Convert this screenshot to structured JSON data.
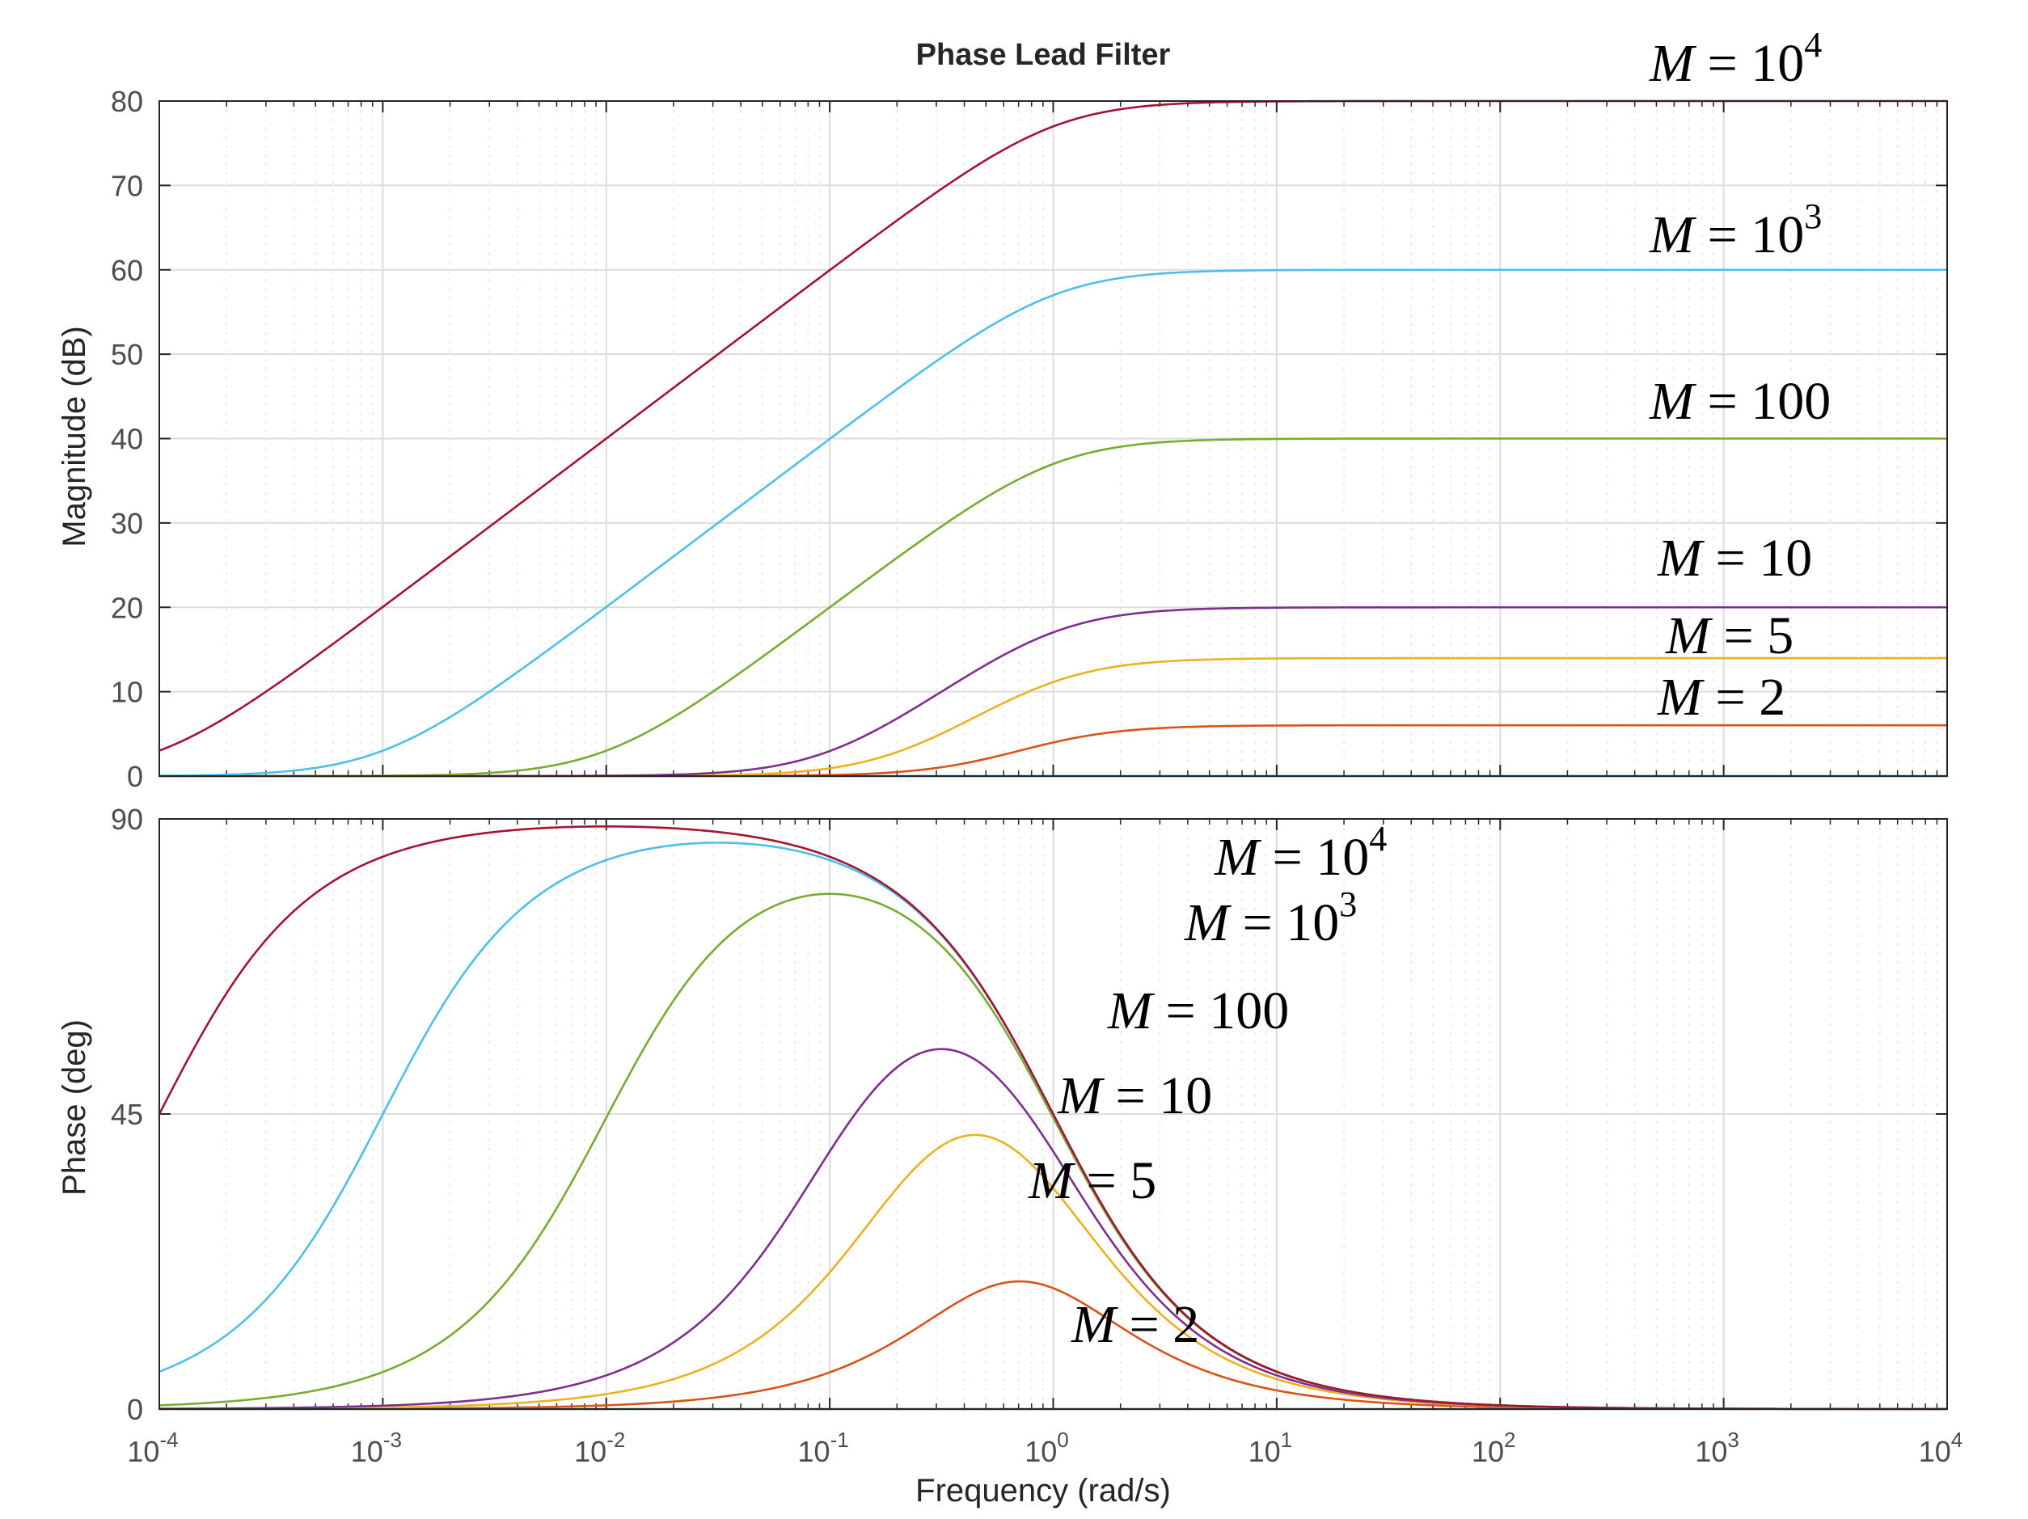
{
  "chart_data": {
    "type": "line",
    "title": "Phase Lead Filter",
    "xlabel": "Frequency  (rad/s)",
    "xscale": "log",
    "xlim": [
      0.0001,
      10000
    ],
    "x_ticks": [
      {
        "base": "10",
        "exp": "-4"
      },
      {
        "base": "10",
        "exp": "-3"
      },
      {
        "base": "10",
        "exp": "-2"
      },
      {
        "base": "10",
        "exp": "-1"
      },
      {
        "base": "10",
        "exp": "0"
      },
      {
        "base": "10",
        "exp": "1"
      },
      {
        "base": "10",
        "exp": "2"
      },
      {
        "base": "10",
        "exp": "3"
      },
      {
        "base": "10",
        "exp": "4"
      }
    ],
    "grid": true,
    "colors": [
      "#0072bd",
      "#d95319",
      "#edb120",
      "#7e2f8e",
      "#77ac30",
      "#4dbeee",
      "#a2142f"
    ],
    "panels": [
      {
        "name": "magnitude",
        "ylabel": "Magnitude (dB)",
        "ylim": [
          0,
          80
        ],
        "y_ticks": [
          "0",
          "10",
          "20",
          "30",
          "40",
          "50",
          "60",
          "70",
          "80"
        ],
        "series_M": [
          1,
          2,
          5,
          10,
          100,
          1000,
          10000
        ],
        "series_labels": [
          {
            "text": "M = 10",
            "sup": "4"
          },
          {
            "text": "M = 10",
            "sup": "3"
          },
          {
            "text": "M = 100",
            "sup": ""
          },
          {
            "text": "M = 10",
            "sup": ""
          },
          {
            "text": "M = 5",
            "sup": ""
          },
          {
            "text": "M = 2",
            "sup": ""
          }
        ],
        "plateau_db": [
          0,
          6.02,
          13.98,
          20,
          40,
          60,
          80
        ]
      },
      {
        "name": "phase",
        "ylabel": "Phase (deg)",
        "ylim": [
          0,
          90
        ],
        "y_ticks": [
          "0",
          "45",
          "90"
        ],
        "series_M": [
          1,
          2,
          5,
          10,
          100,
          1000,
          10000
        ],
        "series_labels": [
          {
            "text": "M = 10",
            "sup": "4"
          },
          {
            "text": "M = 10",
            "sup": "3"
          },
          {
            "text": "M = 100",
            "sup": ""
          },
          {
            "text": "M = 10",
            "sup": ""
          },
          {
            "text": "M = 5",
            "sup": ""
          },
          {
            "text": "M = 2",
            "sup": ""
          }
        ],
        "peak_deg": [
          0,
          19.47,
          41.81,
          54.9,
          78.58,
          86.38,
          88.85
        ],
        "peak_frequency": 1
      }
    ]
  }
}
